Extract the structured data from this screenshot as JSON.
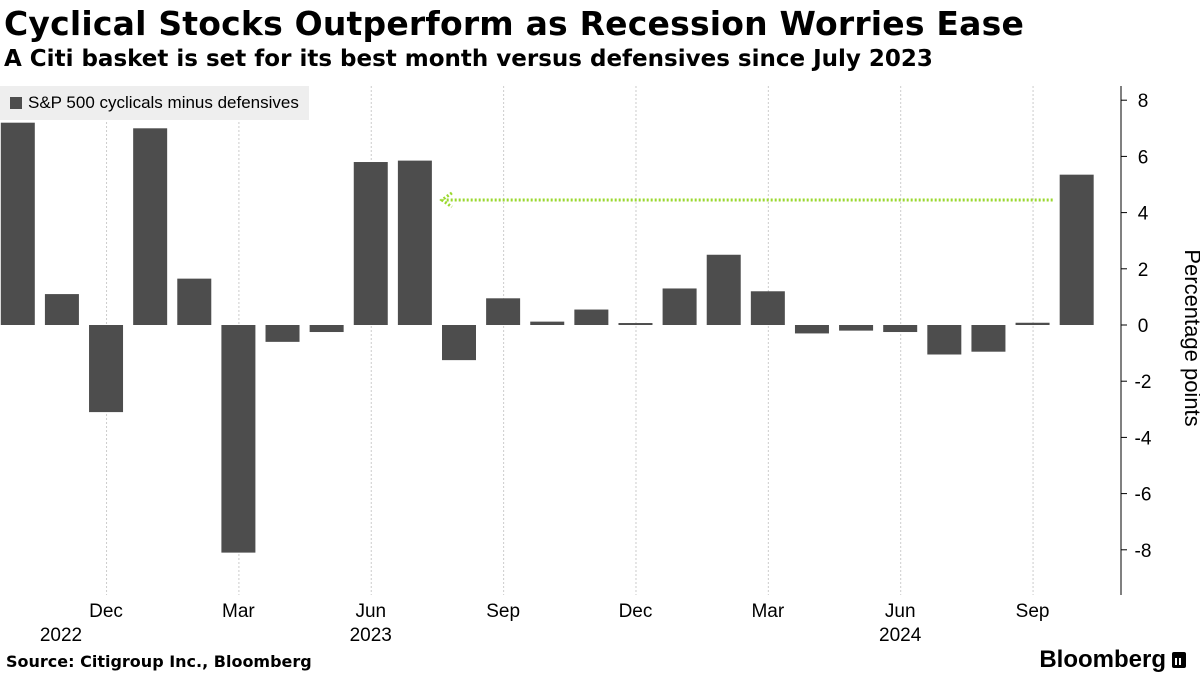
{
  "header": {
    "title": "Cyclical Stocks Outperform as Recession Worries Ease",
    "subtitle": "A Citi basket is set for its best month versus defensives since July 2023"
  },
  "footer": {
    "source": "Source: Citigroup Inc., Bloomberg",
    "brand": "Bloomberg"
  },
  "colors": {
    "bar": "#4d4d4d",
    "arrow": "#9ad82e",
    "grid": "#cccccc"
  },
  "chart_data": {
    "type": "bar",
    "title": "Cyclical Stocks Outperform as Recession Worries Ease",
    "subtitle": "A Citi basket is set for its best month versus defensives since July 2023",
    "ylabel": "Percentage points",
    "xlabel": "",
    "ylim": [
      -9.5,
      8.5
    ],
    "yticks": [
      8,
      6,
      4,
      2,
      0,
      -2,
      -4,
      -6,
      -8
    ],
    "ytick_labels": [
      "8",
      "6",
      "4",
      "2",
      "0",
      "-2",
      "-4",
      "-6",
      "-8"
    ],
    "grid": "vertical dotted at quarter months",
    "legend": "top-left",
    "categories": [
      "2022-10",
      "2022-11",
      "2022-12",
      "2023-01",
      "2023-02",
      "2023-03",
      "2023-04",
      "2023-05",
      "2023-06",
      "2023-07",
      "2023-08",
      "2023-09",
      "2023-10",
      "2023-11",
      "2023-12",
      "2024-01",
      "2024-02",
      "2024-03",
      "2024-04",
      "2024-05",
      "2024-06",
      "2024-07",
      "2024-08",
      "2024-09",
      "2024-10"
    ],
    "series": [
      {
        "name": "S&P 500 cyclicals minus defensives",
        "values": [
          7.2,
          1.1,
          -3.1,
          7.0,
          1.65,
          -8.1,
          -0.6,
          -0.25,
          5.8,
          5.85,
          -1.25,
          0.95,
          0.12,
          0.55,
          0.07,
          1.3,
          2.5,
          1.2,
          -0.3,
          -0.2,
          -0.25,
          -1.05,
          -0.95,
          0.08,
          5.35
        ]
      }
    ],
    "xtick_labels": [
      {
        "label": "Dec",
        "index": 2
      },
      {
        "label": "Mar",
        "index": 5
      },
      {
        "label": "Jun",
        "index": 8
      },
      {
        "label": "Sep",
        "index": 11
      },
      {
        "label": "Dec",
        "index": 14
      },
      {
        "label": "Mar",
        "index": 17
      },
      {
        "label": "Jun",
        "index": 20
      },
      {
        "label": "Sep",
        "index": 23
      }
    ],
    "year_labels": [
      {
        "label": "2022",
        "index": 0
      },
      {
        "label": "2023",
        "index": 8
      },
      {
        "label": "2024",
        "index": 20
      }
    ],
    "annotation": {
      "type": "arrow",
      "from_index": 24,
      "to_index": 9,
      "value": 4.45,
      "style": "dotted"
    }
  }
}
